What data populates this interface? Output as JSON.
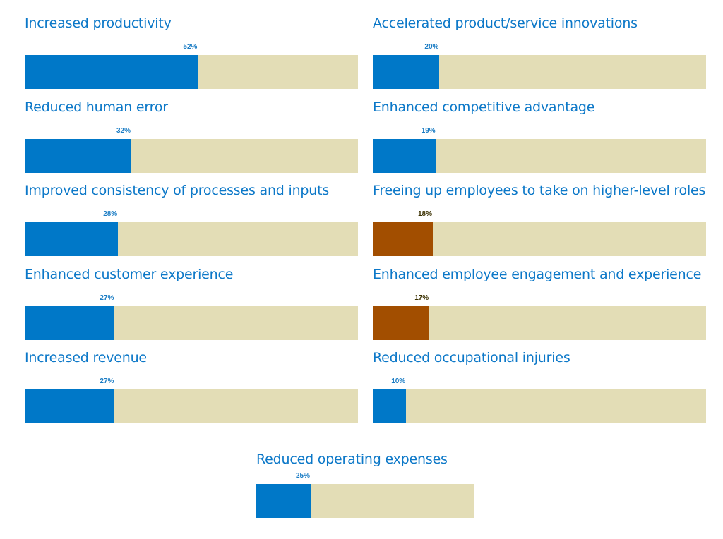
{
  "chart_data": {
    "type": "bar",
    "value_suffix": "%",
    "xlim": [
      0,
      100
    ],
    "colors": {
      "blue": "#0078c8",
      "highlight": "#a24e00",
      "track": "#e3ddb6",
      "blue_label": "#1a7cc4",
      "highlight_label": "#3a3000"
    },
    "bars": [
      {
        "label": "Increased productivity",
        "value": 52,
        "value_label": "52%",
        "highlight": false
      },
      {
        "label": "Accelerated product/service innovations",
        "value": 20,
        "value_label": "20%",
        "highlight": false
      },
      {
        "label": "Reduced human error",
        "value": 32,
        "value_label": "32%",
        "highlight": false
      },
      {
        "label": "Enhanced competitive advantage",
        "value": 19,
        "value_label": "19%",
        "highlight": false
      },
      {
        "label": "Improved consistency of processes and inputs",
        "value": 28,
        "value_label": "28%",
        "highlight": false
      },
      {
        "label": "Freeing up employees to take on higher-level roles",
        "value": 18,
        "value_label": "18%",
        "highlight": true
      },
      {
        "label": "Enhanced customer experience",
        "value": 27,
        "value_label": "27%",
        "highlight": false
      },
      {
        "label": "Enhanced employee engagement and experience",
        "value": 17,
        "value_label": "17%",
        "highlight": true
      },
      {
        "label": "Increased revenue",
        "value": 27,
        "value_label": "27%",
        "highlight": false
      },
      {
        "label": "Reduced occupational injuries",
        "value": 10,
        "value_label": "10%",
        "highlight": false
      },
      {
        "label": "Reduced operating expenses",
        "value": 25,
        "value_label": "25%",
        "highlight": false
      }
    ]
  }
}
